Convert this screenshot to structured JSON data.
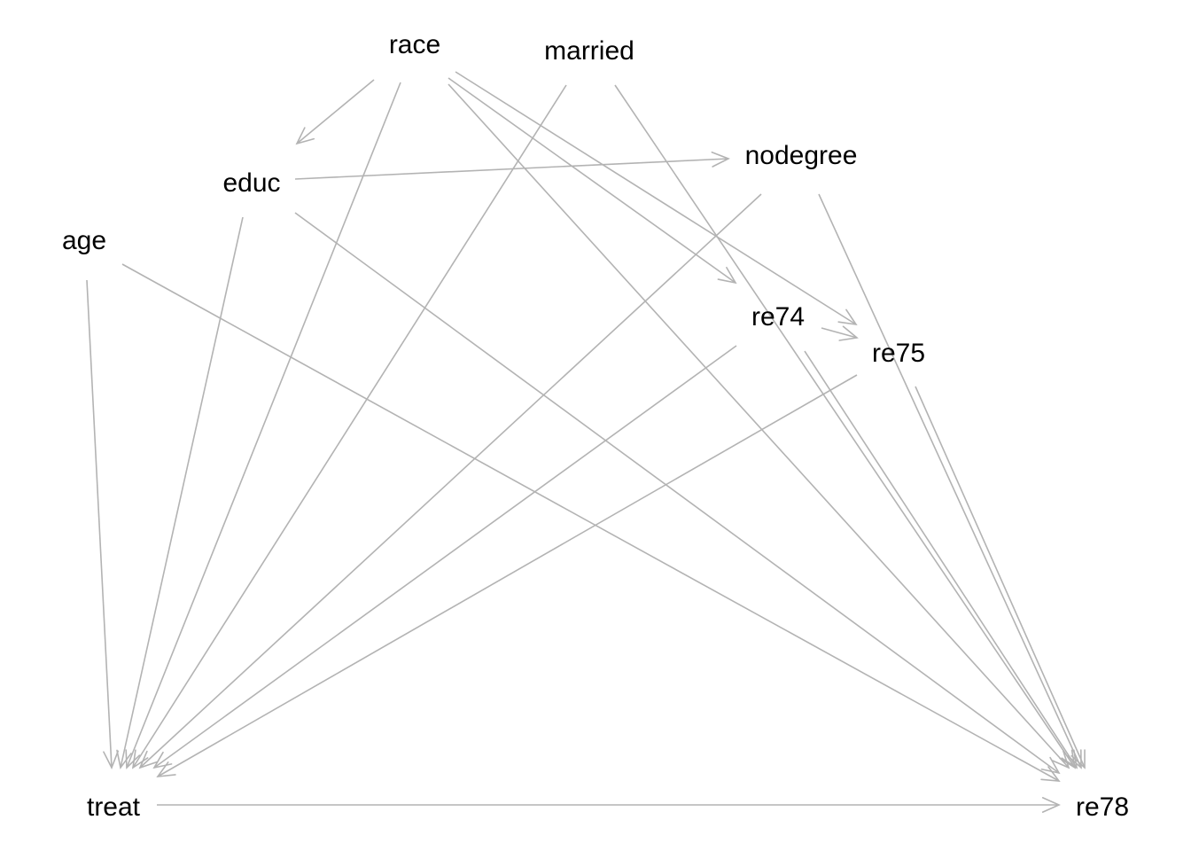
{
  "diagram": {
    "edge_color": "#b3b3b3",
    "text_color": "#000000",
    "nodes": [
      {
        "id": "race",
        "label": "race"
      },
      {
        "id": "married",
        "label": "married"
      },
      {
        "id": "nodegree",
        "label": "nodegree"
      },
      {
        "id": "educ",
        "label": "educ"
      },
      {
        "id": "age",
        "label": "age"
      },
      {
        "id": "re74",
        "label": "re74"
      },
      {
        "id": "re75",
        "label": "re75"
      },
      {
        "id": "treat",
        "label": "treat"
      },
      {
        "id": "re78",
        "label": "re78"
      }
    ],
    "edges": [
      {
        "from": "race",
        "to": "educ"
      },
      {
        "from": "race",
        "to": "treat"
      },
      {
        "from": "race",
        "to": "re74"
      },
      {
        "from": "race",
        "to": "re75"
      },
      {
        "from": "race",
        "to": "re78"
      },
      {
        "from": "married",
        "to": "treat"
      },
      {
        "from": "married",
        "to": "re78"
      },
      {
        "from": "educ",
        "to": "nodegree"
      },
      {
        "from": "educ",
        "to": "treat"
      },
      {
        "from": "educ",
        "to": "re78"
      },
      {
        "from": "age",
        "to": "treat"
      },
      {
        "from": "age",
        "to": "re78"
      },
      {
        "from": "nodegree",
        "to": "treat"
      },
      {
        "from": "nodegree",
        "to": "re78"
      },
      {
        "from": "re74",
        "to": "re75"
      },
      {
        "from": "re74",
        "to": "treat"
      },
      {
        "from": "re74",
        "to": "re78"
      },
      {
        "from": "re75",
        "to": "treat"
      },
      {
        "from": "re75",
        "to": "re78"
      },
      {
        "from": "treat",
        "to": "re78"
      }
    ]
  }
}
